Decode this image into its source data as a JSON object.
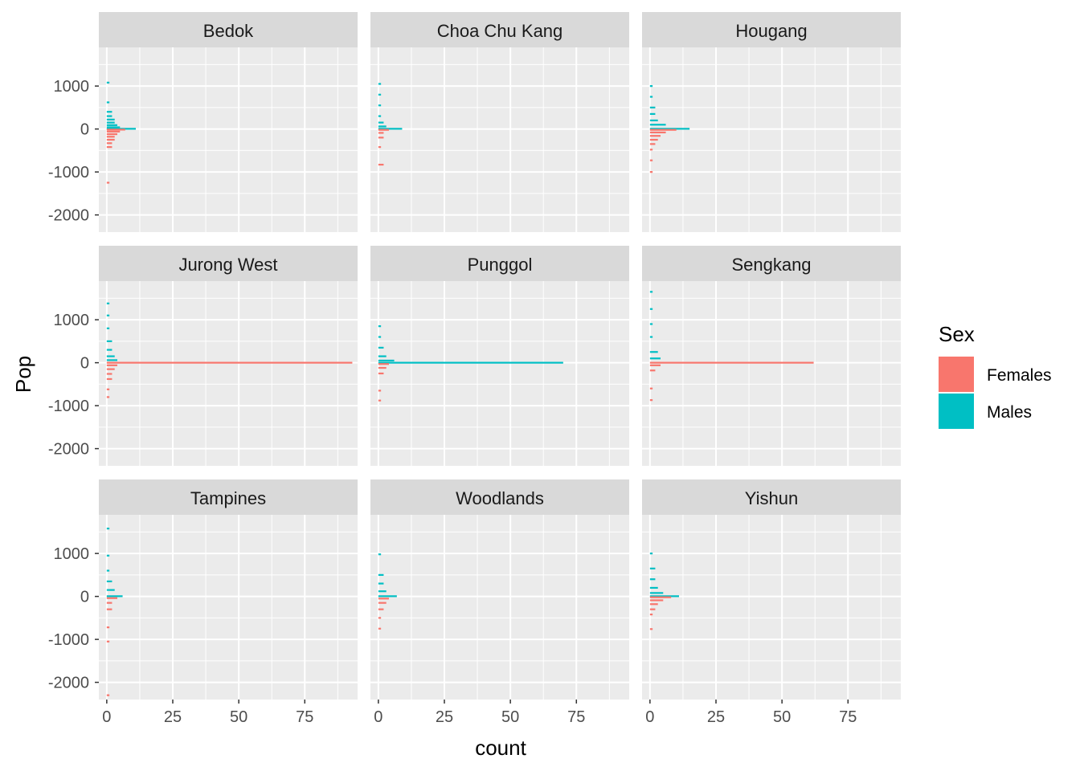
{
  "chart_data": {
    "type": "bar",
    "orientation": "horizontal",
    "facet_layout": "3x3",
    "xlabel": "count",
    "ylabel": "Pop",
    "xlim": [
      -3,
      95
    ],
    "ylim": [
      -2400,
      1900
    ],
    "x_ticks": [
      0,
      25,
      50,
      75
    ],
    "y_ticks": [
      1000,
      0,
      -1000,
      -2000
    ],
    "grid": true,
    "legend": {
      "title": "Sex",
      "position": "right",
      "entries": [
        {
          "label": "Females",
          "color": "#F8766D"
        },
        {
          "label": "Males",
          "color": "#00BFC4"
        }
      ]
    },
    "colors": {
      "Females": "#F8766D",
      "Males": "#00BFC4",
      "panel_bg": "#EBEBEB",
      "strip_bg": "#D9D9D9",
      "grid": "#FFFFFF"
    },
    "panels": [
      {
        "name": "Bedok",
        "bars": [
          {
            "y": 1080,
            "count": 1,
            "sex": "Males"
          },
          {
            "y": 620,
            "count": 1,
            "sex": "Males"
          },
          {
            "y": 400,
            "count": 2,
            "sex": "Males"
          },
          {
            "y": 300,
            "count": 2,
            "sex": "Males"
          },
          {
            "y": 220,
            "count": 3,
            "sex": "Males"
          },
          {
            "y": 150,
            "count": 3,
            "sex": "Males"
          },
          {
            "y": 90,
            "count": 4,
            "sex": "Males"
          },
          {
            "y": 40,
            "count": 5,
            "sex": "Males"
          },
          {
            "y": 5,
            "count": 11,
            "sex": "Males"
          },
          {
            "y": -15,
            "count": 7,
            "sex": "Females"
          },
          {
            "y": -60,
            "count": 5,
            "sex": "Females"
          },
          {
            "y": -120,
            "count": 4,
            "sex": "Females"
          },
          {
            "y": -180,
            "count": 3,
            "sex": "Females"
          },
          {
            "y": -250,
            "count": 3,
            "sex": "Females"
          },
          {
            "y": -330,
            "count": 2,
            "sex": "Females"
          },
          {
            "y": -420,
            "count": 2,
            "sex": "Females"
          },
          {
            "y": -1250,
            "count": 1,
            "sex": "Females"
          }
        ]
      },
      {
        "name": "Choa Chu Kang",
        "bars": [
          {
            "y": 1050,
            "count": 1,
            "sex": "Males"
          },
          {
            "y": 800,
            "count": 1,
            "sex": "Males"
          },
          {
            "y": 550,
            "count": 1,
            "sex": "Males"
          },
          {
            "y": 300,
            "count": 1,
            "sex": "Males"
          },
          {
            "y": 150,
            "count": 2,
            "sex": "Males"
          },
          {
            "y": 60,
            "count": 3,
            "sex": "Males"
          },
          {
            "y": 5,
            "count": 9,
            "sex": "Males"
          },
          {
            "y": -20,
            "count": 4,
            "sex": "Females"
          },
          {
            "y": -90,
            "count": 2,
            "sex": "Females"
          },
          {
            "y": -200,
            "count": 2,
            "sex": "Females"
          },
          {
            "y": -420,
            "count": 1,
            "sex": "Females"
          },
          {
            "y": -830,
            "count": 2,
            "sex": "Females"
          }
        ]
      },
      {
        "name": "Hougang",
        "bars": [
          {
            "y": 1000,
            "count": 1,
            "sex": "Males"
          },
          {
            "y": 750,
            "count": 1,
            "sex": "Males"
          },
          {
            "y": 500,
            "count": 2,
            "sex": "Males"
          },
          {
            "y": 350,
            "count": 2,
            "sex": "Males"
          },
          {
            "y": 200,
            "count": 3,
            "sex": "Males"
          },
          {
            "y": 100,
            "count": 6,
            "sex": "Males"
          },
          {
            "y": 5,
            "count": 15,
            "sex": "Males"
          },
          {
            "y": -20,
            "count": 10,
            "sex": "Females"
          },
          {
            "y": -80,
            "count": 6,
            "sex": "Females"
          },
          {
            "y": -160,
            "count": 4,
            "sex": "Females"
          },
          {
            "y": -250,
            "count": 3,
            "sex": "Females"
          },
          {
            "y": -350,
            "count": 2,
            "sex": "Females"
          },
          {
            "y": -480,
            "count": 1,
            "sex": "Females"
          },
          {
            "y": -730,
            "count": 1,
            "sex": "Females"
          },
          {
            "y": -1000,
            "count": 1,
            "sex": "Females"
          }
        ]
      },
      {
        "name": "Jurong West",
        "bars": [
          {
            "y": 1380,
            "count": 1,
            "sex": "Males"
          },
          {
            "y": 1100,
            "count": 1,
            "sex": "Males"
          },
          {
            "y": 800,
            "count": 1,
            "sex": "Males"
          },
          {
            "y": 500,
            "count": 2,
            "sex": "Males"
          },
          {
            "y": 300,
            "count": 2,
            "sex": "Males"
          },
          {
            "y": 150,
            "count": 3,
            "sex": "Males"
          },
          {
            "y": 60,
            "count": 4,
            "sex": "Males"
          },
          {
            "y": 0,
            "count": 93,
            "sex": "Females"
          },
          {
            "y": -60,
            "count": 4,
            "sex": "Females"
          },
          {
            "y": -150,
            "count": 3,
            "sex": "Females"
          },
          {
            "y": -260,
            "count": 2,
            "sex": "Females"
          },
          {
            "y": -380,
            "count": 2,
            "sex": "Females"
          },
          {
            "y": -620,
            "count": 1,
            "sex": "Females"
          },
          {
            "y": -800,
            "count": 1,
            "sex": "Females"
          }
        ]
      },
      {
        "name": "Punggol",
        "bars": [
          {
            "y": 850,
            "count": 1,
            "sex": "Males"
          },
          {
            "y": 600,
            "count": 1,
            "sex": "Males"
          },
          {
            "y": 350,
            "count": 2,
            "sex": "Males"
          },
          {
            "y": 150,
            "count": 3,
            "sex": "Males"
          },
          {
            "y": 50,
            "count": 6,
            "sex": "Males"
          },
          {
            "y": 0,
            "count": 70,
            "sex": "Males"
          },
          {
            "y": -30,
            "count": 4,
            "sex": "Females"
          },
          {
            "y": -120,
            "count": 3,
            "sex": "Females"
          },
          {
            "y": -250,
            "count": 2,
            "sex": "Females"
          },
          {
            "y": -650,
            "count": 1,
            "sex": "Females"
          },
          {
            "y": -880,
            "count": 1,
            "sex": "Females"
          }
        ]
      },
      {
        "name": "Sengkang",
        "bars": [
          {
            "y": 1650,
            "count": 1,
            "sex": "Males"
          },
          {
            "y": 1250,
            "count": 1,
            "sex": "Males"
          },
          {
            "y": 900,
            "count": 1,
            "sex": "Males"
          },
          {
            "y": 600,
            "count": 1,
            "sex": "Males"
          },
          {
            "y": 250,
            "count": 3,
            "sex": "Males"
          },
          {
            "y": 100,
            "count": 4,
            "sex": "Males"
          },
          {
            "y": 0,
            "count": 62,
            "sex": "Females"
          },
          {
            "y": -60,
            "count": 4,
            "sex": "Females"
          },
          {
            "y": -180,
            "count": 2,
            "sex": "Females"
          },
          {
            "y": -600,
            "count": 1,
            "sex": "Females"
          },
          {
            "y": -870,
            "count": 1,
            "sex": "Females"
          }
        ]
      },
      {
        "name": "Tampines",
        "bars": [
          {
            "y": 1580,
            "count": 1,
            "sex": "Males"
          },
          {
            "y": 950,
            "count": 1,
            "sex": "Males"
          },
          {
            "y": 600,
            "count": 1,
            "sex": "Males"
          },
          {
            "y": 350,
            "count": 2,
            "sex": "Males"
          },
          {
            "y": 150,
            "count": 3,
            "sex": "Males"
          },
          {
            "y": 5,
            "count": 6,
            "sex": "Males"
          },
          {
            "y": -40,
            "count": 4,
            "sex": "Females"
          },
          {
            "y": -150,
            "count": 2,
            "sex": "Females"
          },
          {
            "y": -300,
            "count": 2,
            "sex": "Females"
          },
          {
            "y": -720,
            "count": 1,
            "sex": "Females"
          },
          {
            "y": -1050,
            "count": 1,
            "sex": "Females"
          },
          {
            "y": -2300,
            "count": 1,
            "sex": "Females"
          }
        ]
      },
      {
        "name": "Woodlands",
        "bars": [
          {
            "y": 980,
            "count": 1,
            "sex": "Males"
          },
          {
            "y": 500,
            "count": 2,
            "sex": "Males"
          },
          {
            "y": 300,
            "count": 2,
            "sex": "Males"
          },
          {
            "y": 120,
            "count": 3,
            "sex": "Males"
          },
          {
            "y": 5,
            "count": 7,
            "sex": "Males"
          },
          {
            "y": -50,
            "count": 4,
            "sex": "Females"
          },
          {
            "y": -150,
            "count": 3,
            "sex": "Females"
          },
          {
            "y": -300,
            "count": 2,
            "sex": "Females"
          },
          {
            "y": -500,
            "count": 1,
            "sex": "Females"
          },
          {
            "y": -750,
            "count": 1,
            "sex": "Females"
          }
        ]
      },
      {
        "name": "Yishun",
        "bars": [
          {
            "y": 1000,
            "count": 1,
            "sex": "Males"
          },
          {
            "y": 650,
            "count": 2,
            "sex": "Males"
          },
          {
            "y": 400,
            "count": 2,
            "sex": "Males"
          },
          {
            "y": 200,
            "count": 3,
            "sex": "Males"
          },
          {
            "y": 80,
            "count": 5,
            "sex": "Males"
          },
          {
            "y": 5,
            "count": 11,
            "sex": "Males"
          },
          {
            "y": -20,
            "count": 8,
            "sex": "Females"
          },
          {
            "y": -90,
            "count": 5,
            "sex": "Females"
          },
          {
            "y": -180,
            "count": 3,
            "sex": "Females"
          },
          {
            "y": -300,
            "count": 2,
            "sex": "Females"
          },
          {
            "y": -420,
            "count": 1,
            "sex": "Females"
          },
          {
            "y": -760,
            "count": 1,
            "sex": "Females"
          }
        ]
      }
    ]
  }
}
